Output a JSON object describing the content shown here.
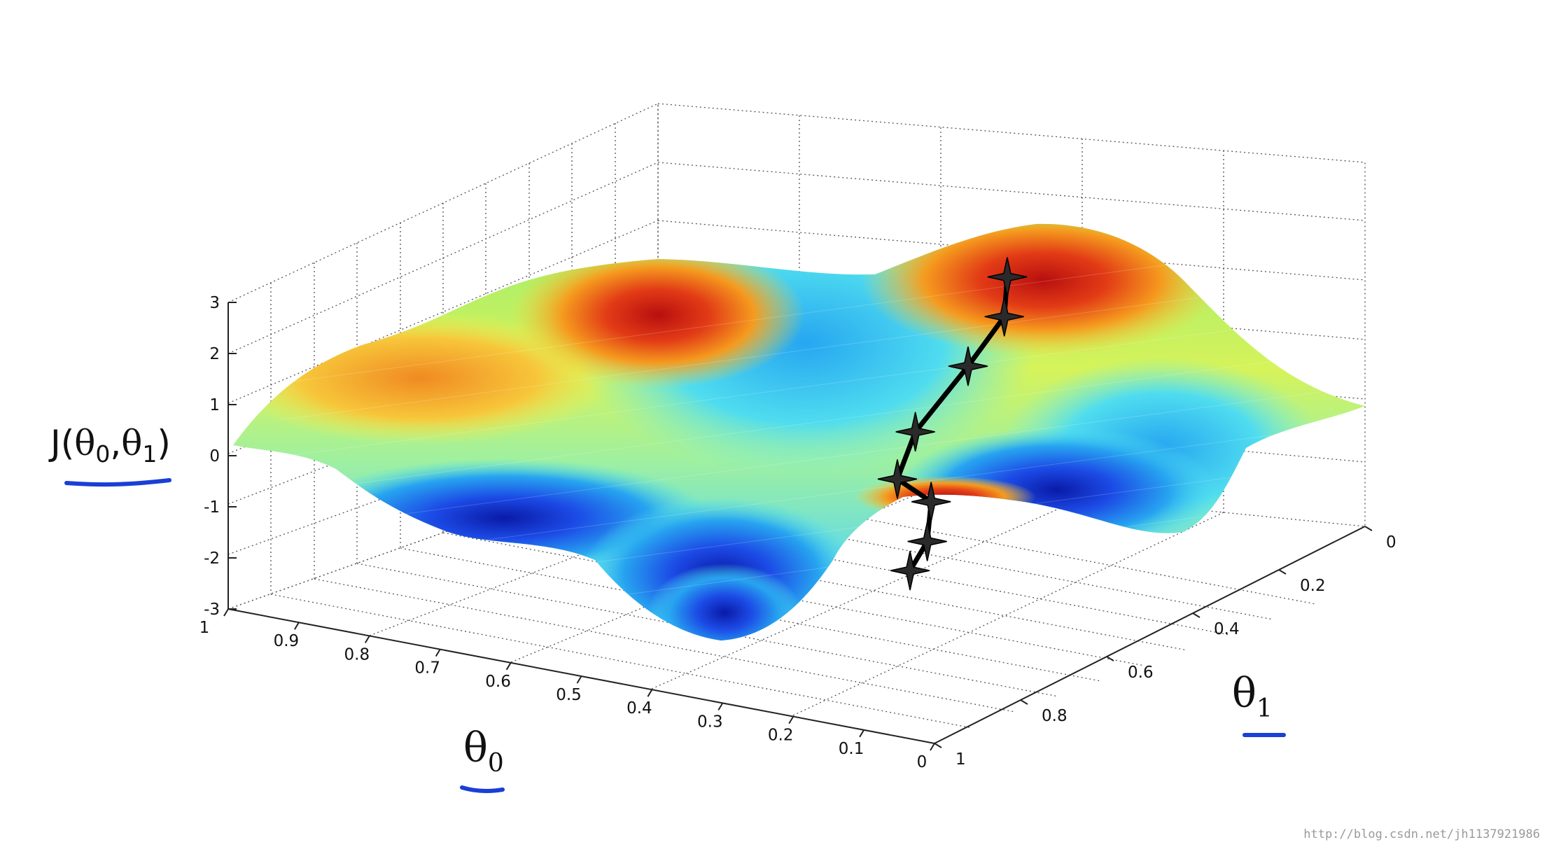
{
  "chart_data": {
    "type": "surface",
    "z_label": "J(θ0,θ1)",
    "x_label": "θ0",
    "y_label": "θ1",
    "z_ticks": [
      "3",
      "2",
      "1",
      "0",
      "-1",
      "-2",
      "-3"
    ],
    "x_ticks": [
      "1",
      "0.9",
      "0.8",
      "0.7",
      "0.6",
      "0.5",
      "0.4",
      "0.3",
      "0.2",
      "0.1",
      "0"
    ],
    "y_ticks": [
      "0",
      "0.2",
      "0.4",
      "0.6",
      "0.8",
      "1"
    ],
    "zlim": [
      -3,
      3
    ],
    "xlim": [
      0,
      1
    ],
    "ylim": [
      0,
      1
    ],
    "grid": true,
    "colormap": "jet",
    "descent_path": [
      {
        "theta0": 0.345,
        "theta1": 0.265,
        "j": 2.1
      },
      {
        "theta0": 0.34,
        "theta1": 0.28,
        "j": 1.4
      },
      {
        "theta0": 0.37,
        "theta1": 0.315,
        "j": 0.5
      },
      {
        "theta0": 0.405,
        "theta1": 0.38,
        "j": -0.6
      },
      {
        "theta0": 0.4,
        "theta1": 0.43,
        "j": -1.3
      },
      {
        "theta0": 0.34,
        "theta1": 0.45,
        "j": -1.5
      },
      {
        "theta0": 0.315,
        "theta1": 0.5,
        "j": -2.0
      },
      {
        "theta0": 0.315,
        "theta1": 0.54,
        "j": -2.4
      }
    ]
  },
  "axis_label_parts": {
    "z": {
      "J": "J(",
      "t0": "θ",
      "s0": "0",
      "comma": ",",
      "t1": "θ",
      "s1": "1",
      "close": ")"
    },
    "x": {
      "t": "θ",
      "s": "0"
    },
    "y": {
      "t": "θ",
      "s": "1"
    }
  },
  "watermark": "http://blog.csdn.net/jh1137921986",
  "colors": {
    "underline": "#1a3fd6",
    "path": "#000000",
    "grid": "#555555"
  }
}
